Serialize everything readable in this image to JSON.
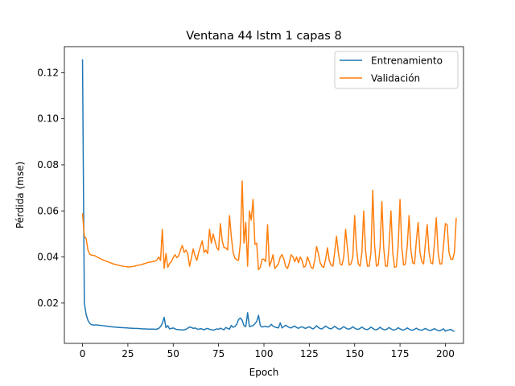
{
  "chart_data": {
    "type": "line",
    "title": "Ventana 44 lstm 1 capas 8",
    "xlabel": "Epoch",
    "ylabel": "Pérdida (mse)",
    "xlim": [
      -10,
      210
    ],
    "ylim": [
      0.0025,
      0.1313
    ],
    "xticks": [
      0,
      25,
      50,
      75,
      100,
      125,
      150,
      175,
      200
    ],
    "yticks": [
      0.02,
      0.04,
      0.06,
      0.08,
      0.1,
      0.12
    ],
    "ytick_labels": [
      "0.02",
      "0.04",
      "0.06",
      "0.08",
      "0.10",
      "0.12"
    ],
    "grid": false,
    "legend_position": "top-right",
    "series": [
      {
        "name": "Entrenamiento",
        "color": "#1f77b4",
        "values": [
          0.1258,
          0.02,
          0.015,
          0.0125,
          0.0112,
          0.0106,
          0.0105,
          0.0105,
          0.0105,
          0.0104,
          0.0103,
          0.0102,
          0.0101,
          0.01,
          0.0099,
          0.0098,
          0.0097,
          0.0096,
          0.0096,
          0.0095,
          0.0094,
          0.0094,
          0.0093,
          0.0093,
          0.0092,
          0.0092,
          0.0091,
          0.0091,
          0.009,
          0.009,
          0.009,
          0.0089,
          0.0089,
          0.0088,
          0.0088,
          0.0088,
          0.0087,
          0.0087,
          0.0087,
          0.0087,
          0.0086,
          0.0087,
          0.009,
          0.0098,
          0.0112,
          0.0138,
          0.0093,
          0.0102,
          0.0088,
          0.009,
          0.0092,
          0.0088,
          0.0085,
          0.0085,
          0.0084,
          0.0083,
          0.0084,
          0.0086,
          0.0091,
          0.0096,
          0.0094,
          0.009,
          0.0092,
          0.0088,
          0.0086,
          0.0089,
          0.0087,
          0.0084,
          0.0088,
          0.009,
          0.0086,
          0.0085,
          0.0082,
          0.0085,
          0.0088,
          0.0086,
          0.0091,
          0.0087,
          0.0084,
          0.0094,
          0.009,
          0.0087,
          0.0103,
          0.0095,
          0.0098,
          0.0108,
          0.0128,
          0.0135,
          0.0125,
          0.0102,
          0.0098,
          0.0158,
          0.0098,
          0.01,
          0.0102,
          0.011,
          0.012,
          0.0147,
          0.0102,
          0.0096,
          0.0098,
          0.0099,
          0.0096,
          0.0098,
          0.0108,
          0.01,
          0.0096,
          0.0094,
          0.0092,
          0.0114,
          0.0092,
          0.0098,
          0.0104,
          0.0098,
          0.0094,
          0.0092,
          0.0097,
          0.01,
          0.0094,
          0.009,
          0.0095,
          0.0097,
          0.0093,
          0.009,
          0.0094,
          0.0097,
          0.0092,
          0.0088,
          0.0093,
          0.0102,
          0.0094,
          0.0089,
          0.0088,
          0.0094,
          0.01,
          0.0095,
          0.009,
          0.0088,
          0.0093,
          0.0099,
          0.0093,
          0.0088,
          0.0087,
          0.0092,
          0.0098,
          0.0092,
          0.0088,
          0.0087,
          0.0091,
          0.0097,
          0.0091,
          0.0087,
          0.0086,
          0.009,
          0.0096,
          0.009,
          0.0086,
          0.0085,
          0.0089,
          0.0096,
          0.009,
          0.0085,
          0.0084,
          0.0088,
          0.0095,
          0.0089,
          0.0085,
          0.0084,
          0.0088,
          0.0094,
          0.0088,
          0.0084,
          0.0083,
          0.0087,
          0.0093,
          0.0088,
          0.0084,
          0.0083,
          0.0087,
          0.0092,
          0.0087,
          0.0083,
          0.0082,
          0.0086,
          0.0091,
          0.0086,
          0.0083,
          0.0082,
          0.0086,
          0.009,
          0.0085,
          0.0082,
          0.0081,
          0.0085,
          0.0089,
          0.0084,
          0.0081,
          0.008,
          0.0084,
          0.0088,
          0.0078,
          0.0082,
          0.0083,
          0.0086,
          0.008,
          0.0077
        ],
        "values_note_removed": true
      },
      {
        "name": "Validación",
        "color": "#ff7f0e",
        "values": [
          0.059,
          0.049,
          0.048,
          0.043,
          0.0412,
          0.0408,
          0.0407,
          0.0405,
          0.04,
          0.0396,
          0.0392,
          0.0388,
          0.0385,
          0.0382,
          0.0379,
          0.0376,
          0.0373,
          0.037,
          0.0368,
          0.0366,
          0.0364,
          0.0362,
          0.036,
          0.0359,
          0.0358,
          0.0357,
          0.0357,
          0.0358,
          0.0359,
          0.0361,
          0.0363,
          0.0365,
          0.0366,
          0.0368,
          0.0371,
          0.0373,
          0.0376,
          0.0378,
          0.0379,
          0.038,
          0.0382,
          0.0387,
          0.04,
          0.0385,
          0.052,
          0.035,
          0.0415,
          0.0355,
          0.0372,
          0.038,
          0.0398,
          0.041,
          0.0397,
          0.0405,
          0.043,
          0.045,
          0.042,
          0.043,
          0.0415,
          0.036,
          0.0395,
          0.0435,
          0.0405,
          0.0385,
          0.0418,
          0.0445,
          0.047,
          0.042,
          0.043,
          0.0415,
          0.052,
          0.046,
          0.05,
          0.047,
          0.044,
          0.043,
          0.0545,
          0.047,
          0.044,
          0.044,
          0.043,
          0.058,
          0.049,
          0.042,
          0.0395,
          0.0388,
          0.0385,
          0.046,
          0.073,
          0.046,
          0.055,
          0.036,
          0.06,
          0.056,
          0.065,
          0.0455,
          0.046,
          0.0345,
          0.0355,
          0.039,
          0.039,
          0.038,
          0.054,
          0.036,
          0.038,
          0.041,
          0.035,
          0.036,
          0.037,
          0.04,
          0.041,
          0.039,
          0.0358,
          0.035,
          0.0375,
          0.041,
          0.04,
          0.038,
          0.04,
          0.0375,
          0.04,
          0.0385,
          0.0355,
          0.0362,
          0.04,
          0.038,
          0.0355,
          0.035,
          0.0385,
          0.0445,
          0.0415,
          0.0375,
          0.036,
          0.0355,
          0.039,
          0.044,
          0.0385,
          0.0365,
          0.036,
          0.042,
          0.049,
          0.042,
          0.037,
          0.0365,
          0.04,
          0.052,
          0.044,
          0.0365,
          0.037,
          0.04,
          0.058,
          0.044,
          0.037,
          0.036,
          0.042,
          0.06,
          0.043,
          0.036,
          0.036,
          0.042,
          0.069,
          0.045,
          0.036,
          0.0365,
          0.044,
          0.064,
          0.044,
          0.036,
          0.036,
          0.045,
          0.06,
          0.042,
          0.0355,
          0.0358,
          0.045,
          0.065,
          0.044,
          0.0365,
          0.037,
          0.045,
          0.058,
          0.043,
          0.0375,
          0.037,
          0.047,
          0.055,
          0.042,
          0.038,
          0.037,
          0.046,
          0.054,
          0.042,
          0.0375,
          0.037,
          0.046,
          0.057,
          0.042,
          0.037,
          0.037,
          0.045,
          0.0545,
          0.054,
          0.042,
          0.039,
          0.039,
          0.042,
          0.057
        ]
      }
    ]
  }
}
